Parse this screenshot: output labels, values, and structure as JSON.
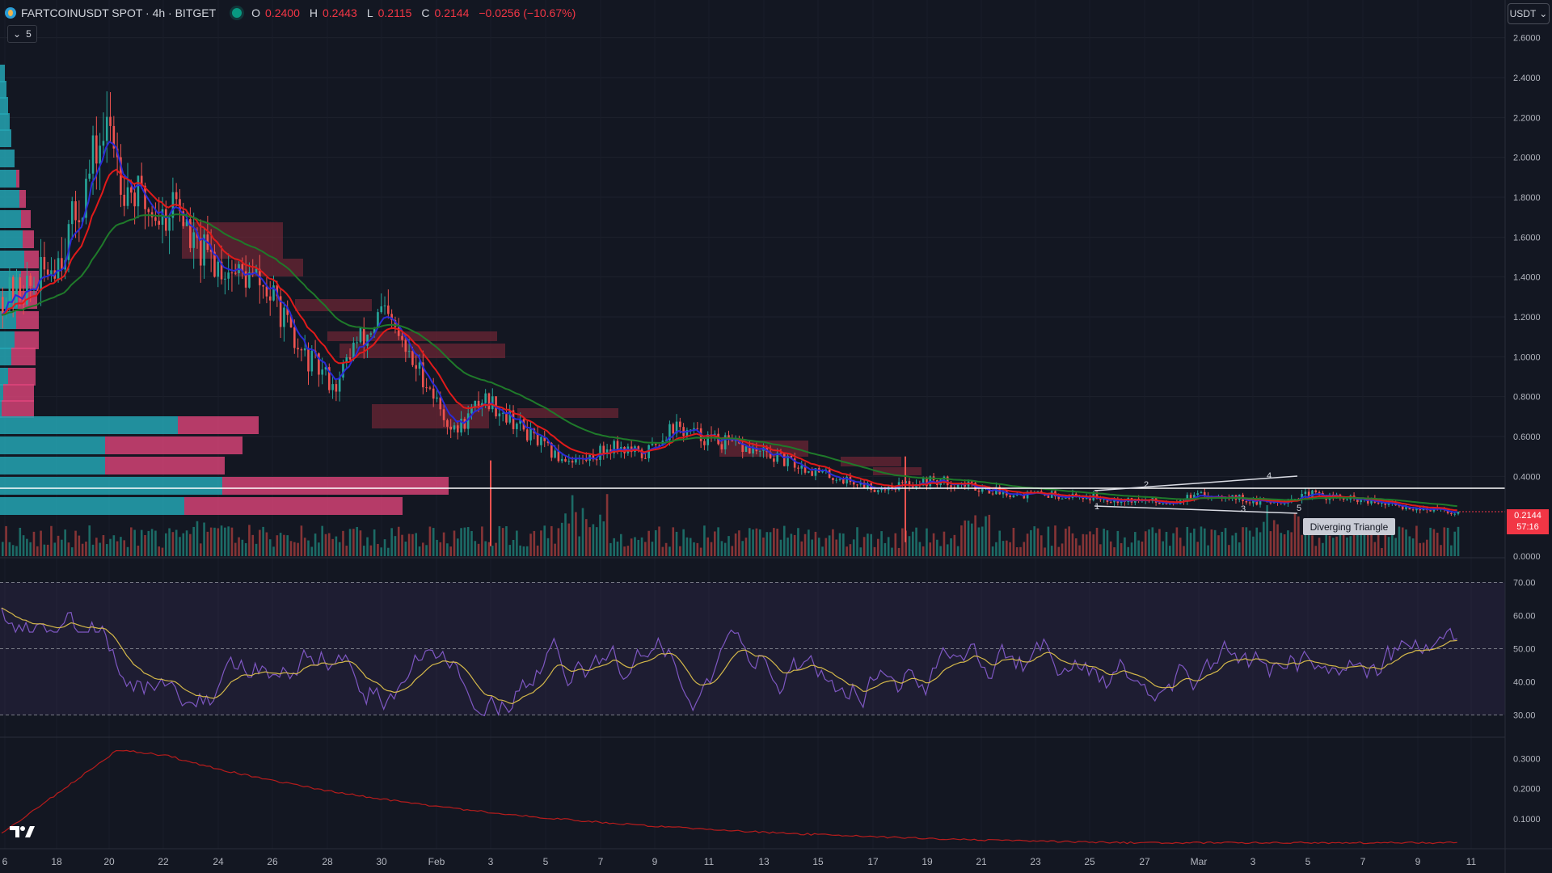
{
  "header": {
    "symbol": "FARTCOINUSDT SPOT · 4h · BITGET",
    "open_label": "O",
    "open": "0.2400",
    "high_label": "H",
    "high": "0.2443",
    "low_label": "L",
    "low": "0.2115",
    "close_label": "C",
    "close": "0.2144",
    "change": "−0.0256 (−10.67%)"
  },
  "layers_badge": "5",
  "currency": "USDT",
  "last_price": "0.2144",
  "countdown": "57:16",
  "pattern_label": "Diverging Triangle",
  "pattern_points": [
    "1",
    "2",
    "3",
    "4",
    "5"
  ],
  "colors": {
    "up": "#26a69a",
    "down": "#ef5350",
    "ema_fast": "#2a2bd6",
    "ema_mid": "#e11a1a",
    "ema_slow": "#1f7a2a",
    "rsi": "#7e57c2",
    "rsi_ma": "#d4b84a",
    "indicator": "#b71c1c"
  },
  "icons": {
    "logo": "tradingview-logo-icon",
    "dropdown": "chevron-down-icon",
    "layers": "layers-icon",
    "live": "live-dot-icon"
  },
  "price_axis": [
    "2.6000",
    "2.4000",
    "2.2000",
    "2.0000",
    "1.8000",
    "1.6000",
    "1.4000",
    "1.2000",
    "1.0000",
    "0.8000",
    "0.6000",
    "0.4000",
    "0.0000"
  ],
  "rsi_axis": [
    "70.00",
    "60.00",
    "50.00",
    "40.00",
    "30.00"
  ],
  "indicator_axis": [
    "0.3000",
    "0.2000",
    "0.1000"
  ],
  "time_axis": [
    "6",
    "18",
    "20",
    "22",
    "24",
    "26",
    "28",
    "30",
    "Feb",
    "3",
    "5",
    "7",
    "9",
    "11",
    "13",
    "15",
    "17",
    "19",
    "21",
    "23",
    "25",
    "27",
    "Mar",
    "3",
    "5",
    "7",
    "9",
    "11"
  ],
  "chart_data": {
    "type": "candlestick",
    "title": "FARTCOINUSDT SPOT · 4h · BITGET",
    "ylim": [
      0.0,
      2.7
    ],
    "close_path": [
      [
        0.0,
        1.3
      ],
      [
        0.02,
        1.35
      ],
      [
        0.04,
        1.52
      ],
      [
        0.055,
        1.8
      ],
      [
        0.065,
        2.05
      ],
      [
        0.075,
        2.15
      ],
      [
        0.082,
        1.9
      ],
      [
        0.095,
        1.78
      ],
      [
        0.11,
        1.7
      ],
      [
        0.12,
        1.8
      ],
      [
        0.13,
        1.55
      ],
      [
        0.145,
        1.48
      ],
      [
        0.16,
        1.42
      ],
      [
        0.175,
        1.38
      ],
      [
        0.19,
        1.25
      ],
      [
        0.2,
        1.05
      ],
      [
        0.215,
        0.95
      ],
      [
        0.23,
        0.85
      ],
      [
        0.24,
        1.05
      ],
      [
        0.25,
        1.1
      ],
      [
        0.26,
        1.22
      ],
      [
        0.27,
        1.12
      ],
      [
        0.28,
        0.98
      ],
      [
        0.29,
        0.9
      ],
      [
        0.3,
        0.75
      ],
      [
        0.31,
        0.62
      ],
      [
        0.32,
        0.7
      ],
      [
        0.33,
        0.8
      ],
      [
        0.345,
        0.72
      ],
      [
        0.36,
        0.62
      ],
      [
        0.38,
        0.5
      ],
      [
        0.4,
        0.48
      ],
      [
        0.42,
        0.56
      ],
      [
        0.44,
        0.5
      ],
      [
        0.46,
        0.65
      ],
      [
        0.48,
        0.6
      ],
      [
        0.5,
        0.56
      ],
      [
        0.52,
        0.52
      ],
      [
        0.54,
        0.47
      ],
      [
        0.56,
        0.42
      ],
      [
        0.58,
        0.38
      ],
      [
        0.6,
        0.34
      ],
      [
        0.62,
        0.36
      ],
      [
        0.64,
        0.38
      ],
      [
        0.66,
        0.36
      ],
      [
        0.68,
        0.33
      ],
      [
        0.7,
        0.31
      ],
      [
        0.72,
        0.31
      ],
      [
        0.74,
        0.3
      ],
      [
        0.76,
        0.29
      ],
      [
        0.78,
        0.28
      ],
      [
        0.8,
        0.27
      ],
      [
        0.82,
        0.3
      ],
      [
        0.84,
        0.31
      ],
      [
        0.86,
        0.27
      ],
      [
        0.88,
        0.28
      ],
      [
        0.9,
        0.31
      ],
      [
        0.92,
        0.29
      ],
      [
        0.94,
        0.27
      ],
      [
        0.96,
        0.25
      ],
      [
        0.98,
        0.235
      ],
      [
        1.0,
        0.2144
      ]
    ],
    "rsi": {
      "levels": [
        70,
        50,
        30
      ],
      "range": [
        25,
        75
      ]
    },
    "indicator": {
      "ylim": [
        0.0,
        0.35
      ]
    }
  }
}
